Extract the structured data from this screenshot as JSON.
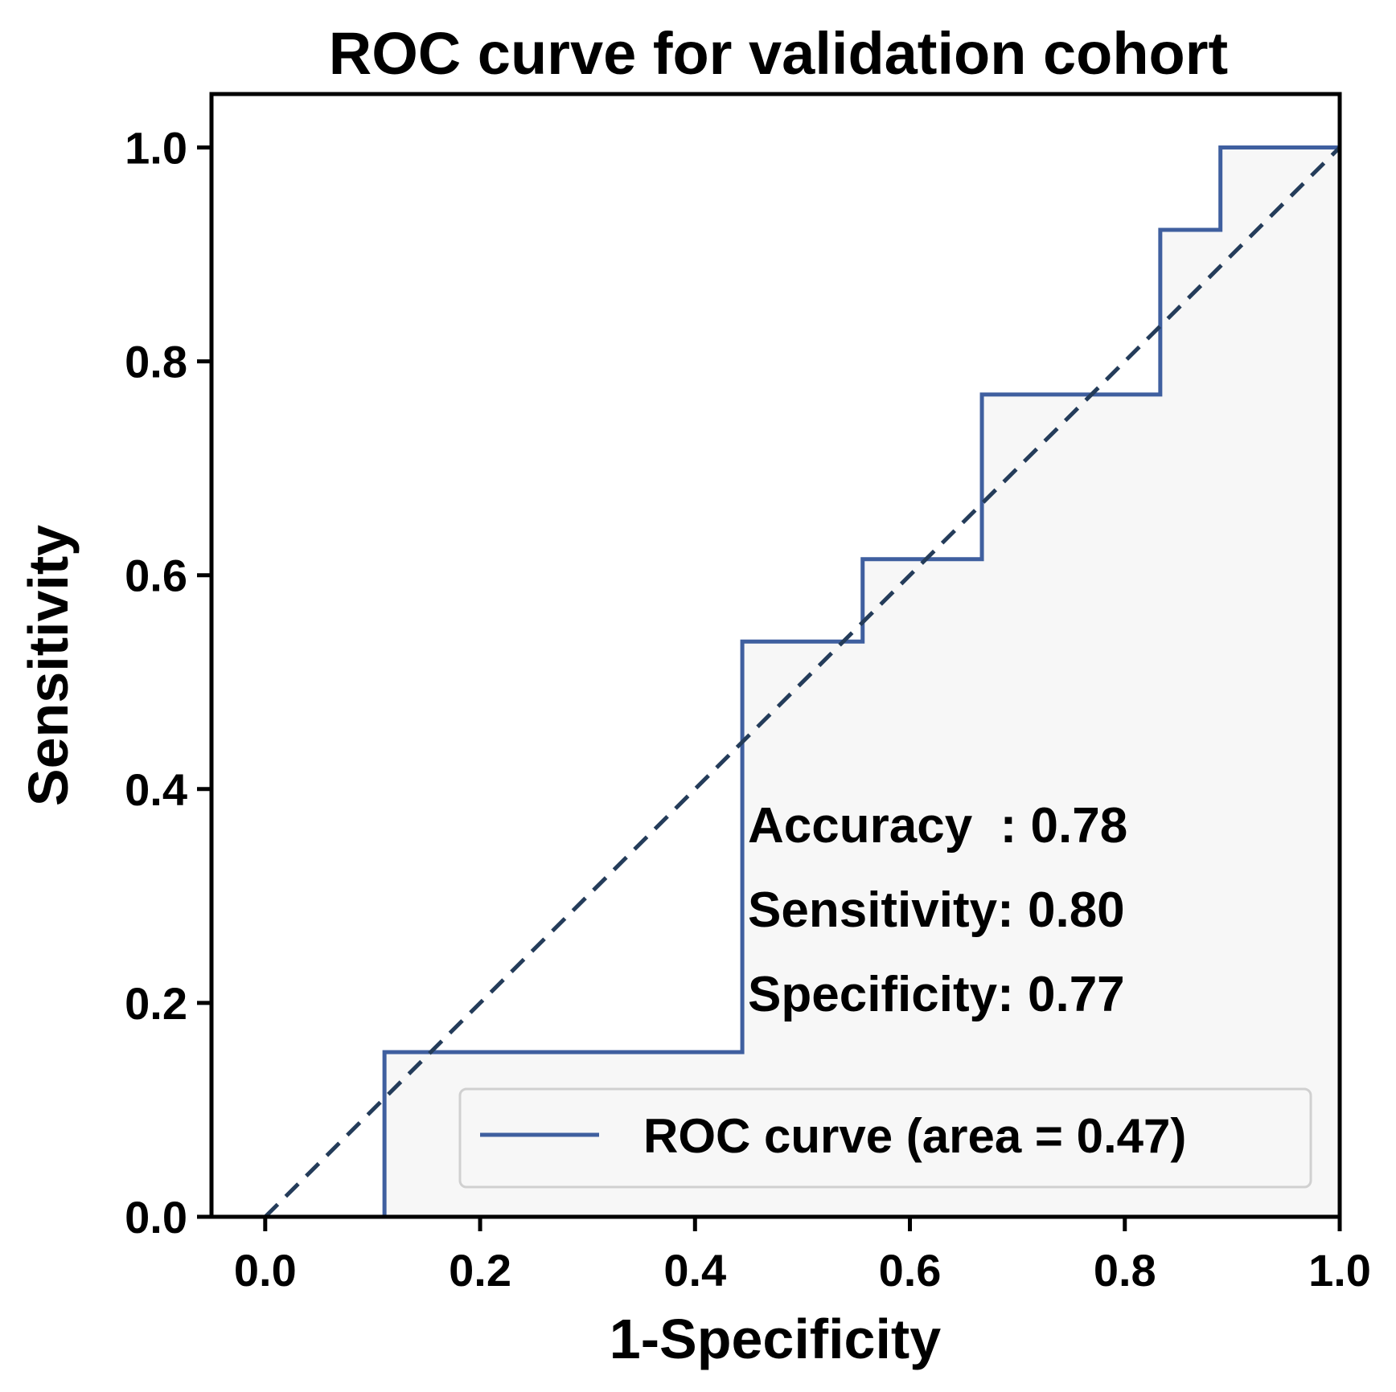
{
  "chart_data": {
    "type": "line",
    "title": "ROC curve for validation cohort",
    "xlabel": "1-Specificity",
    "ylabel": "Sensitivity",
    "xlim": [
      -0.05,
      1.0
    ],
    "ylim": [
      0.0,
      1.05
    ],
    "xticks": [
      "0.0",
      "0.2",
      "0.4",
      "0.6",
      "0.8",
      "1.0"
    ],
    "yticks": [
      "0.0",
      "0.2",
      "0.4",
      "0.6",
      "0.8",
      "1.0"
    ],
    "grid": false,
    "legend_position": "lower-right",
    "plot_background": "#f7f7f7",
    "series": [
      {
        "name": "ROC curve (area = 0.47)",
        "style": "step",
        "color": "#3f5f9f",
        "points": [
          [
            0.0,
            0.0
          ],
          [
            0.111,
            0.0
          ],
          [
            0.111,
            0.154
          ],
          [
            0.444,
            0.154
          ],
          [
            0.444,
            0.538
          ],
          [
            0.556,
            0.538
          ],
          [
            0.556,
            0.615
          ],
          [
            0.667,
            0.615
          ],
          [
            0.667,
            0.769
          ],
          [
            0.833,
            0.769
          ],
          [
            0.833,
            0.923
          ],
          [
            0.889,
            0.923
          ],
          [
            0.889,
            1.0
          ],
          [
            1.0,
            1.0
          ]
        ]
      },
      {
        "style": "dashed",
        "color": "#243c5a",
        "points": [
          [
            0.0,
            0.0
          ],
          [
            1.0,
            1.0
          ]
        ]
      }
    ],
    "annotations": [
      "Accuracy  : 0.78",
      "Sensitivity: 0.80",
      "Specificity: 0.77"
    ]
  }
}
